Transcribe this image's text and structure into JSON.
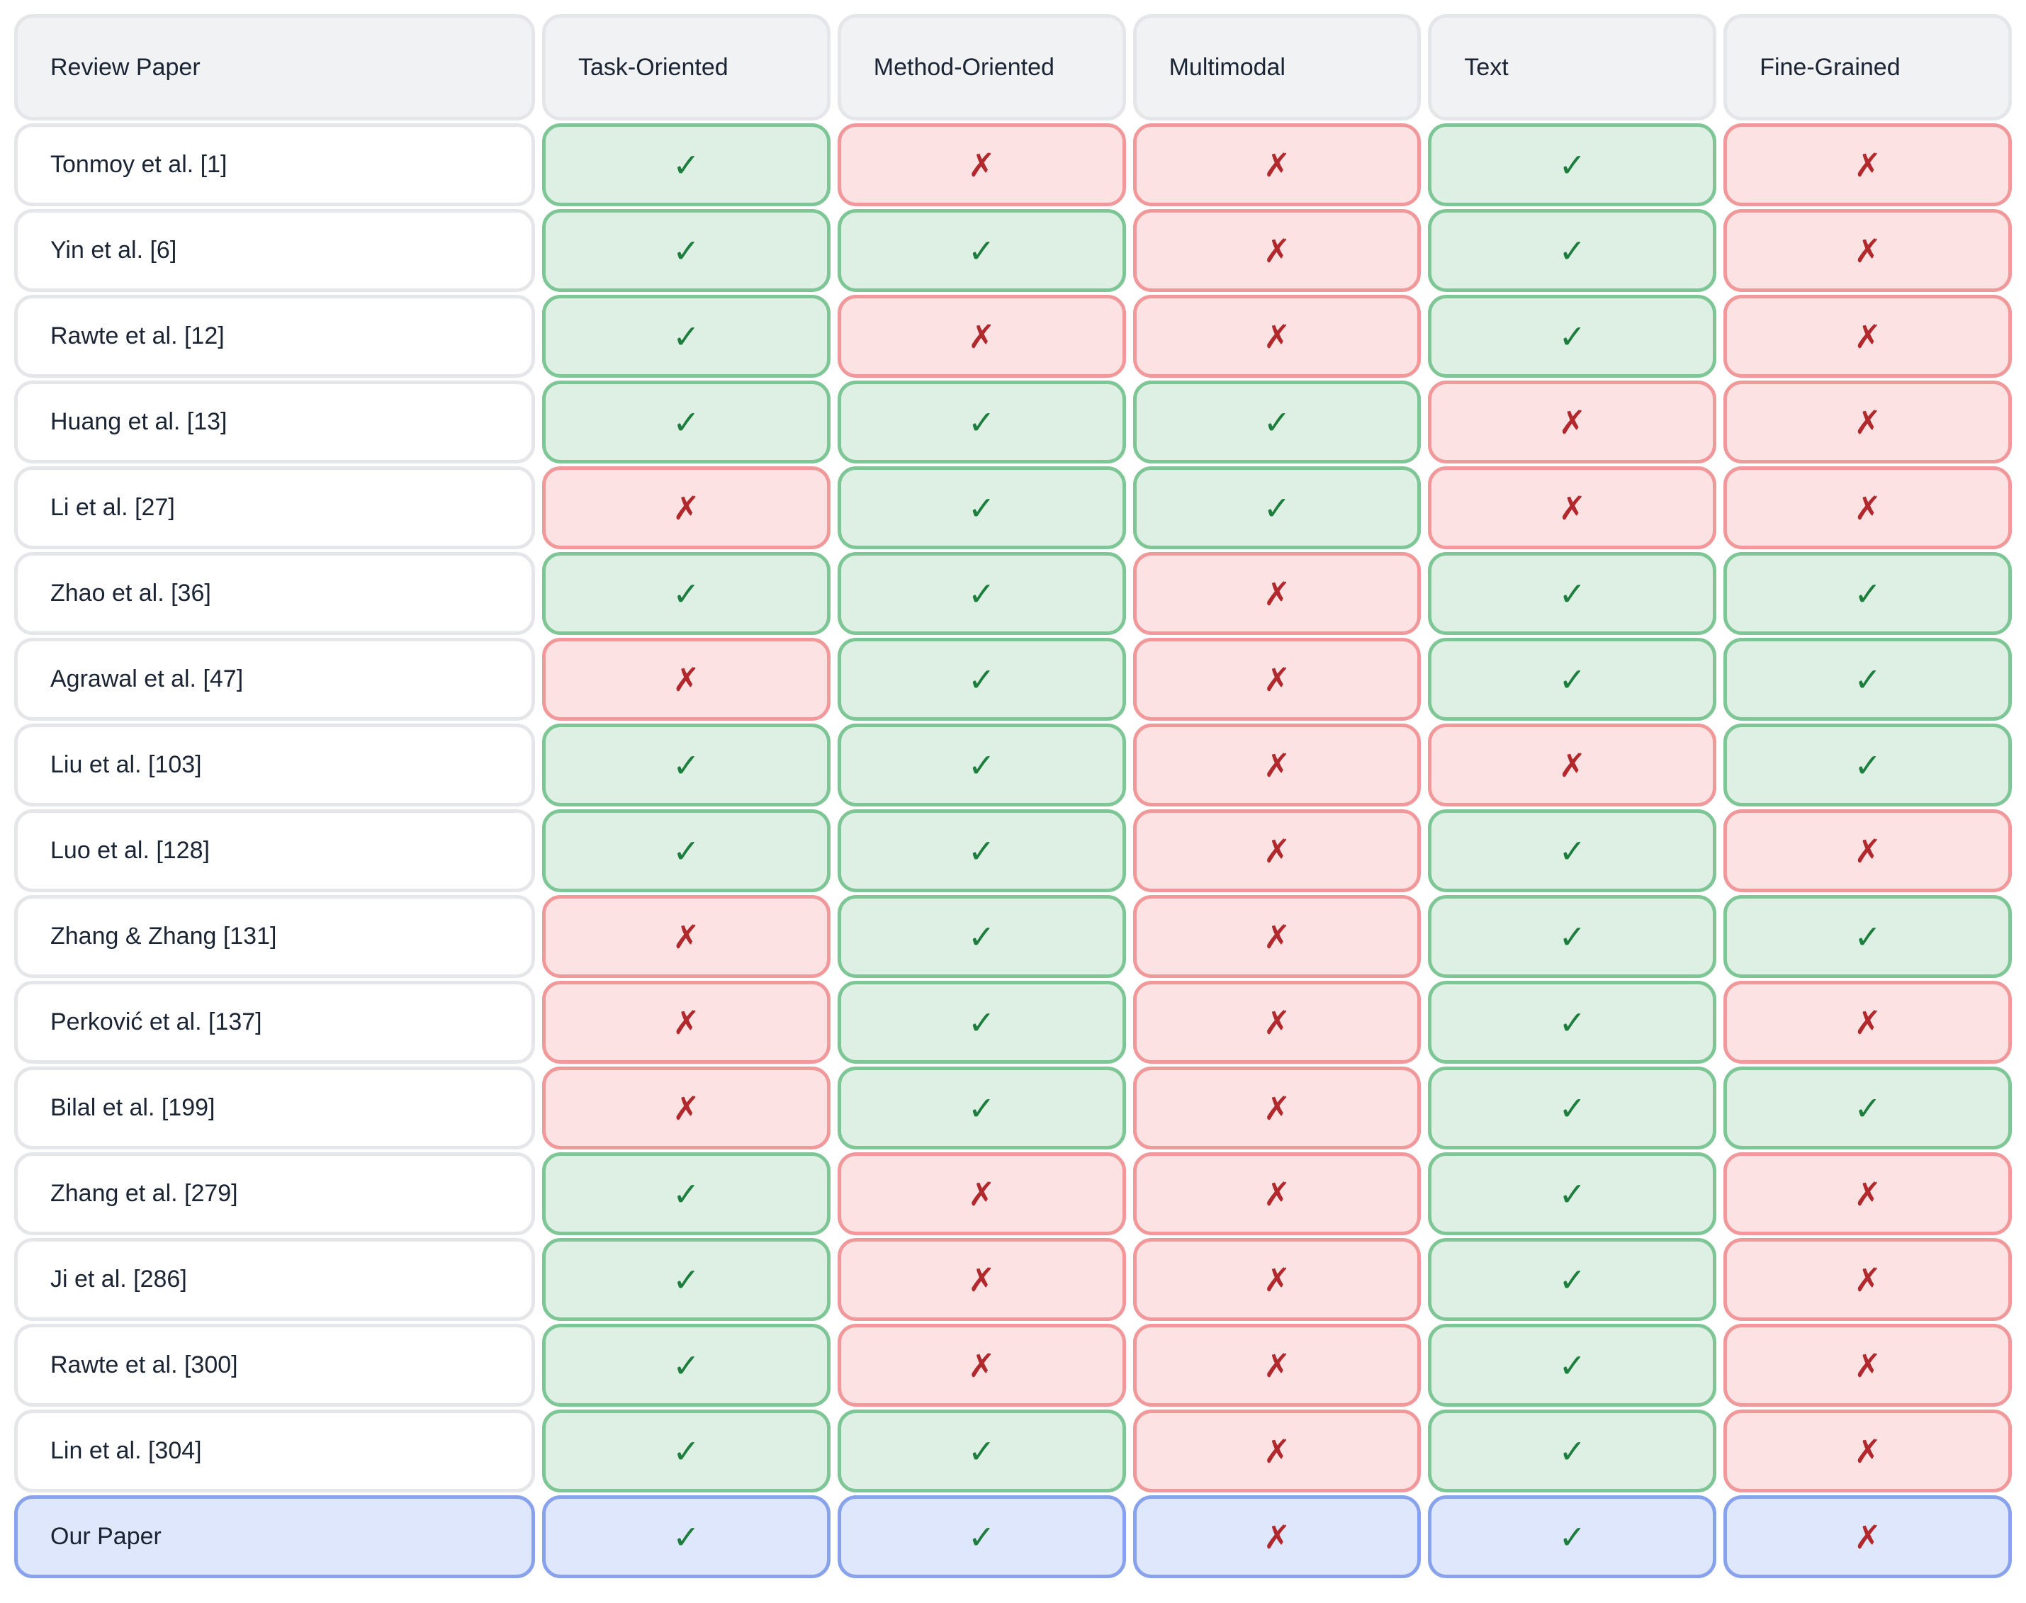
{
  "chart_data": {
    "type": "table",
    "columns": [
      "Review Paper",
      "Task-Oriented",
      "Method-Oriented",
      "Multimodal",
      "Text",
      "Fine-Grained"
    ],
    "rows": [
      {
        "label": "Tonmoy et al. [1]",
        "values": [
          true,
          false,
          false,
          true,
          false
        ],
        "highlight": false
      },
      {
        "label": "Yin et al. [6]",
        "values": [
          true,
          true,
          false,
          true,
          false
        ],
        "highlight": false
      },
      {
        "label": "Rawte et al. [12]",
        "values": [
          true,
          false,
          false,
          true,
          false
        ],
        "highlight": false
      },
      {
        "label": "Huang et al. [13]",
        "values": [
          true,
          true,
          true,
          false,
          false
        ],
        "highlight": false
      },
      {
        "label": "Li et al. [27]",
        "values": [
          false,
          true,
          true,
          false,
          false
        ],
        "highlight": false
      },
      {
        "label": "Zhao et al. [36]",
        "values": [
          true,
          true,
          false,
          true,
          true
        ],
        "highlight": false
      },
      {
        "label": "Agrawal et al. [47]",
        "values": [
          false,
          true,
          false,
          true,
          true
        ],
        "highlight": false
      },
      {
        "label": "Liu et al. [103]",
        "values": [
          true,
          true,
          false,
          false,
          true
        ],
        "highlight": false
      },
      {
        "label": "Luo et al. [128]",
        "values": [
          true,
          true,
          false,
          true,
          false
        ],
        "highlight": false
      },
      {
        "label": "Zhang & Zhang [131]",
        "values": [
          false,
          true,
          false,
          true,
          true
        ],
        "highlight": false
      },
      {
        "label": "Perković et al. [137]",
        "values": [
          false,
          true,
          false,
          true,
          false
        ],
        "highlight": false
      },
      {
        "label": "Bilal et al. [199]",
        "values": [
          false,
          true,
          false,
          true,
          true
        ],
        "highlight": false
      },
      {
        "label": "Zhang et al. [279]",
        "values": [
          true,
          false,
          false,
          true,
          false
        ],
        "highlight": false
      },
      {
        "label": "Ji et al. [286]",
        "values": [
          true,
          false,
          false,
          true,
          false
        ],
        "highlight": false
      },
      {
        "label": "Rawte et al. [300]",
        "values": [
          true,
          false,
          false,
          true,
          false
        ],
        "highlight": false
      },
      {
        "label": "Lin et al. [304]",
        "values": [
          true,
          true,
          false,
          true,
          false
        ],
        "highlight": false
      },
      {
        "label": "Our Paper",
        "values": [
          true,
          true,
          false,
          true,
          false
        ],
        "highlight": true
      }
    ]
  },
  "marks": {
    "check": "✓",
    "cross": "✗"
  },
  "colors": {
    "header-bg": "#f1f2f4",
    "header-border": "#e4e6e9",
    "label-border": "#e4e6e9",
    "text": "#1a2433",
    "green-bg": "#def0e4",
    "green-border": "#7fc697",
    "check": "#1d7e3e",
    "red-bg": "#fce2e2",
    "red-border": "#f0989a",
    "cross": "#b1282d",
    "blue-bg": "#dee7fc",
    "blue-border": "#88a2ec"
  }
}
